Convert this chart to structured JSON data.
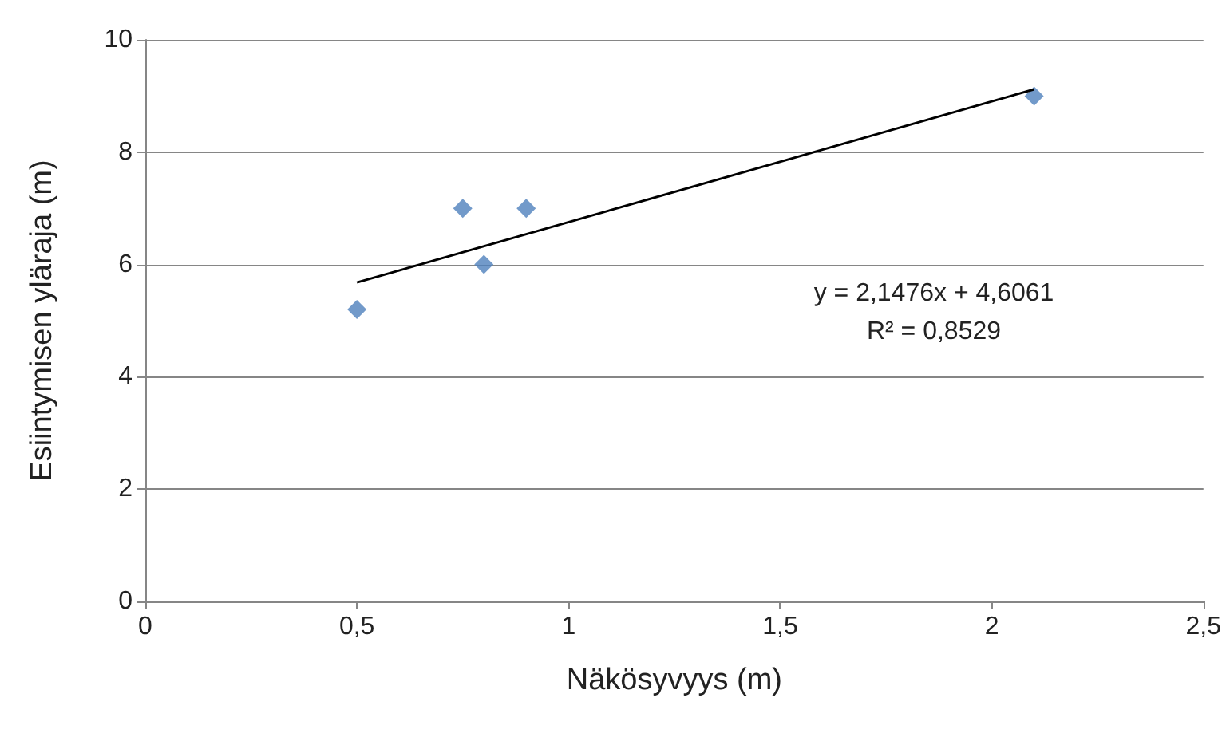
{
  "chart_data": {
    "type": "scatter",
    "xlabel": "Näkösyvyys (m)",
    "ylabel": "Esiintymisen yläraja (m)",
    "series": [
      {
        "type": "scatter",
        "color": "#4f81bd",
        "marker": "diamond",
        "x": [
          0.5,
          0.75,
          0.8,
          0.9,
          2.1
        ],
        "values": [
          5.2,
          7,
          6,
          7,
          9
        ]
      },
      {
        "type": "line",
        "color": "#000000",
        "marker": "none",
        "line_style": "solid",
        "x": [
          0.5,
          2.1
        ],
        "values": [
          5.68,
          9.12
        ]
      }
    ],
    "xlim": [
      0,
      2.5
    ],
    "xticks": [
      0,
      {
        "value": 0.5,
        "label": "0,5"
      },
      1,
      {
        "value": 1.5,
        "label": "1,5"
      },
      2,
      {
        "value": 2.5,
        "label": "2,5"
      }
    ],
    "ylim": [
      0,
      10
    ],
    "yticks": [
      0,
      2,
      4,
      6,
      8,
      10
    ],
    "grid": "y",
    "annotations": [
      "y = 2,1476x + 4,6061",
      "R² = 0,8529"
    ]
  }
}
